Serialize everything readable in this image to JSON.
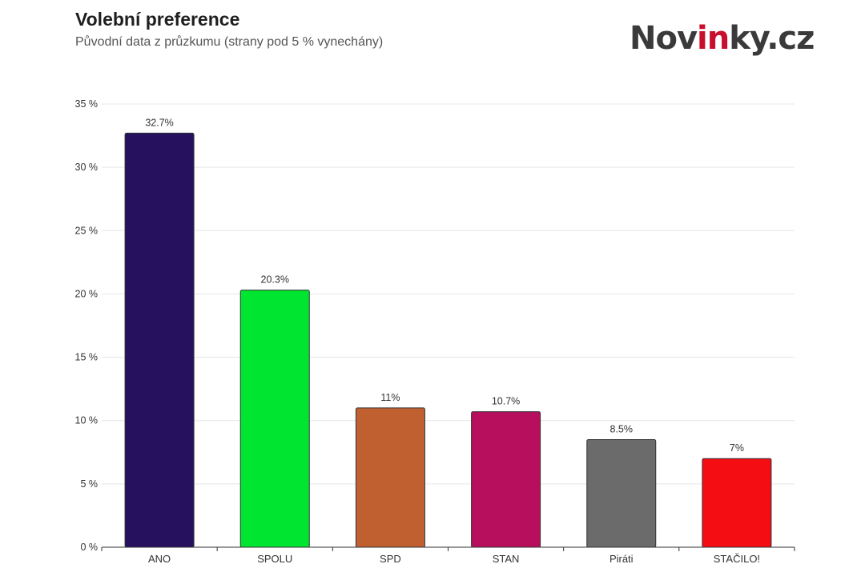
{
  "header": {
    "title": "Volební preference",
    "subtitle": "Původní data z průzkumu (strany pod 5 % vynechány)"
  },
  "logo": {
    "text_before": "Nov",
    "text_accent": "in",
    "text_after": "ky.cz"
  },
  "chart_data": {
    "type": "bar",
    "title": "Volební preference",
    "subtitle": "Původní data z průzkumu (strany pod 5 % vynechány)",
    "xlabel": "",
    "ylabel": "",
    "categories": [
      "ANO",
      "SPOLU",
      "SPD",
      "STAN",
      "Piráti",
      "STAČILO!"
    ],
    "values": [
      32.7,
      20.3,
      11,
      10.7,
      8.5,
      7
    ],
    "data_labels": [
      "32.7%",
      "20.3%",
      "11%",
      "10.7%",
      "8.5%",
      "7%"
    ],
    "colors": [
      "#26115e",
      "#00e52f",
      "#c06030",
      "#b80e5e",
      "#6b6b6b",
      "#f50d14"
    ],
    "ylim": [
      0,
      35
    ],
    "yticks": [
      0,
      5,
      10,
      15,
      20,
      25,
      30,
      35
    ],
    "ytick_labels": [
      "0 %",
      "5 %",
      "10 %",
      "15 %",
      "20 %",
      "25 %",
      "30 %",
      "35 %"
    ],
    "grid": true,
    "legend": "none"
  }
}
